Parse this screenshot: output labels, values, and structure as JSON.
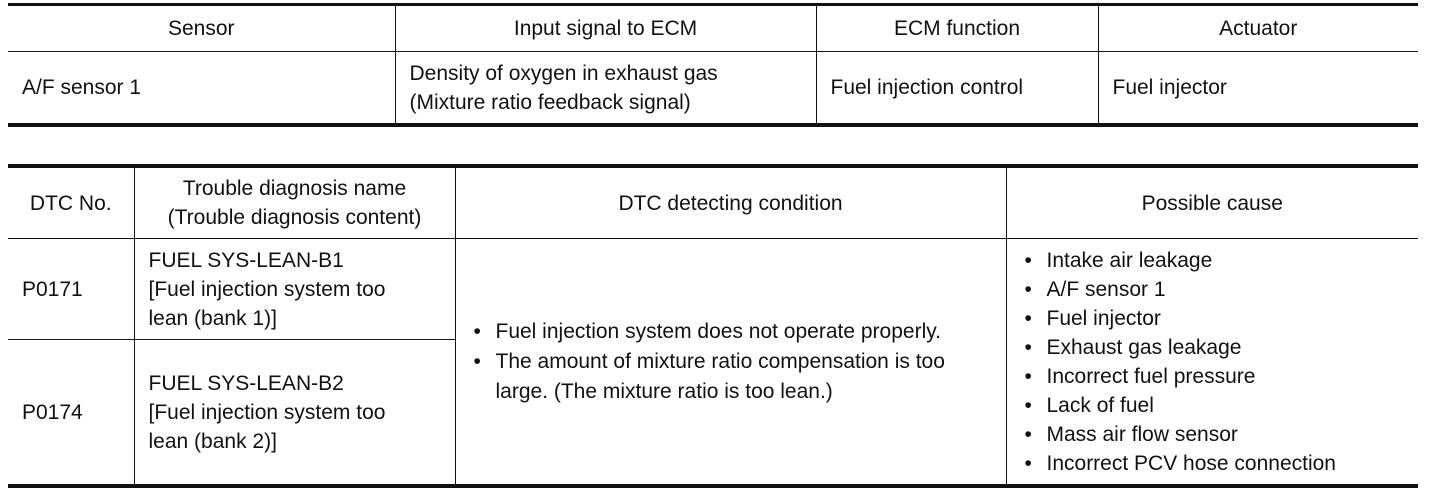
{
  "signal_table": {
    "headers": [
      "Sensor",
      "Input signal to ECM",
      "ECM function",
      "Actuator"
    ],
    "row": {
      "sensor": "A/F sensor 1",
      "input_signal_line1": "Density of oxygen in exhaust gas",
      "input_signal_line2": "(Mixture ratio feedback signal)",
      "ecm_function": "Fuel injection control",
      "actuator": "Fuel injector"
    }
  },
  "dtc_table": {
    "headers": {
      "dtc_no": "DTC No.",
      "name_line1": "Trouble diagnosis name",
      "name_line2": "(Trouble diagnosis content)",
      "condition": "DTC detecting condition",
      "cause": "Possible cause"
    },
    "rows": [
      {
        "code": "P0171",
        "name_line1": "FUEL SYS-LEAN-B1",
        "name_line2": "[Fuel injection system too",
        "name_line3": "lean (bank 1)]"
      },
      {
        "code": "P0174",
        "name_line1": "FUEL SYS-LEAN-B2",
        "name_line2": "[Fuel injection system too",
        "name_line3": "lean (bank 2)]"
      }
    ],
    "conditions": [
      "Fuel injection system does not operate properly.",
      "The amount of mixture ratio compensation is too large. (The mixture ratio is too lean.)"
    ],
    "causes": [
      "Intake air leakage",
      "A/F sensor 1",
      "Fuel injector",
      "Exhaust gas leakage",
      "Incorrect fuel pressure",
      "Lack of fuel",
      "Mass air flow sensor",
      "Incorrect PCV hose connection"
    ]
  }
}
